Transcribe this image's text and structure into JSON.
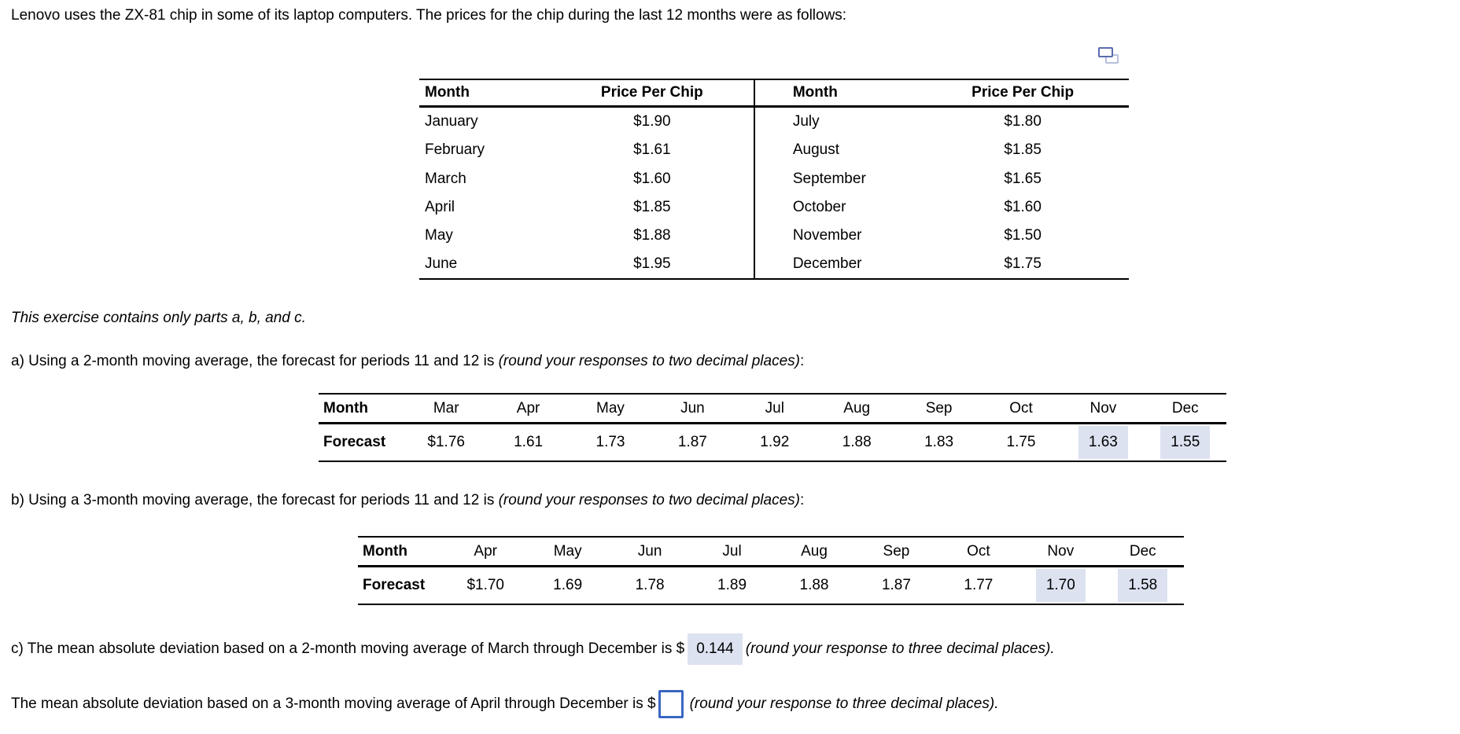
{
  "intro": "Lenovo uses the ZX-81 chip in some of its laptop computers. The prices for the chip during the last 12 months were as follows:",
  "note": "This exercise contains only parts a, b, and c.",
  "icons": {
    "popout": "popout-window-icon"
  },
  "colors": {
    "highlight": "#dce2f0",
    "input_border": "#3a67c3",
    "icon_front": "#5b6cae",
    "icon_back": "#b7bfdd"
  },
  "price_table": {
    "headers": [
      "Month",
      "Price Per Chip",
      "Month",
      "Price Per Chip"
    ],
    "rows": [
      {
        "m1": "January",
        "p1": "$1.90",
        "m2": "July",
        "p2": "$1.80"
      },
      {
        "m1": "February",
        "p1": "$1.61",
        "m2": "August",
        "p2": "$1.85"
      },
      {
        "m1": "March",
        "p1": "$1.60",
        "m2": "September",
        "p2": "$1.65"
      },
      {
        "m1": "April",
        "p1": "$1.85",
        "m2": "October",
        "p2": "$1.60"
      },
      {
        "m1": "May",
        "p1": "$1.88",
        "m2": "November",
        "p2": "$1.50"
      },
      {
        "m1": "June",
        "p1": "$1.95",
        "m2": "December",
        "p2": "$1.75"
      }
    ]
  },
  "part_a": {
    "prompt": "a) Using a 2-month moving average, the forecast for periods 11 and 12 is ",
    "prompt_italic": "(round your responses to two decimal places)",
    "prompt_suffix": ":",
    "table": {
      "row_label_1": "Month",
      "row_label_2": "Forecast",
      "months": [
        "Mar",
        "Apr",
        "May",
        "Jun",
        "Jul",
        "Aug",
        "Sep",
        "Oct",
        "Nov",
        "Dec"
      ],
      "forecasts": [
        "$1.76",
        "1.61",
        "1.73",
        "1.87",
        "1.92",
        "1.88",
        "1.83",
        "1.75",
        "1.63",
        "1.55"
      ]
    }
  },
  "part_b": {
    "prompt": "b) Using a 3-month moving average, the forecast for periods 11 and 12 is ",
    "prompt_italic": "(round your responses to two decimal places)",
    "prompt_suffix": ":",
    "table": {
      "row_label_1": "Month",
      "row_label_2": "Forecast",
      "months": [
        "Apr",
        "May",
        "Jun",
        "Jul",
        "Aug",
        "Sep",
        "Oct",
        "Nov",
        "Dec"
      ],
      "forecasts": [
        "$1.70",
        "1.69",
        "1.78",
        "1.89",
        "1.88",
        "1.87",
        "1.77",
        "1.70",
        "1.58"
      ]
    }
  },
  "part_c": {
    "line1_prefix": "c) The mean absolute deviation based on a 2-month moving average of March through December is $",
    "line1_answer": "0.144",
    "line1_italic": "(round your response to three decimal places).",
    "line2_prefix": "The mean absolute deviation based on a 3-month moving average of April through December is $",
    "line2_answer": "",
    "line2_italic": "(round your response to three decimal places)."
  }
}
